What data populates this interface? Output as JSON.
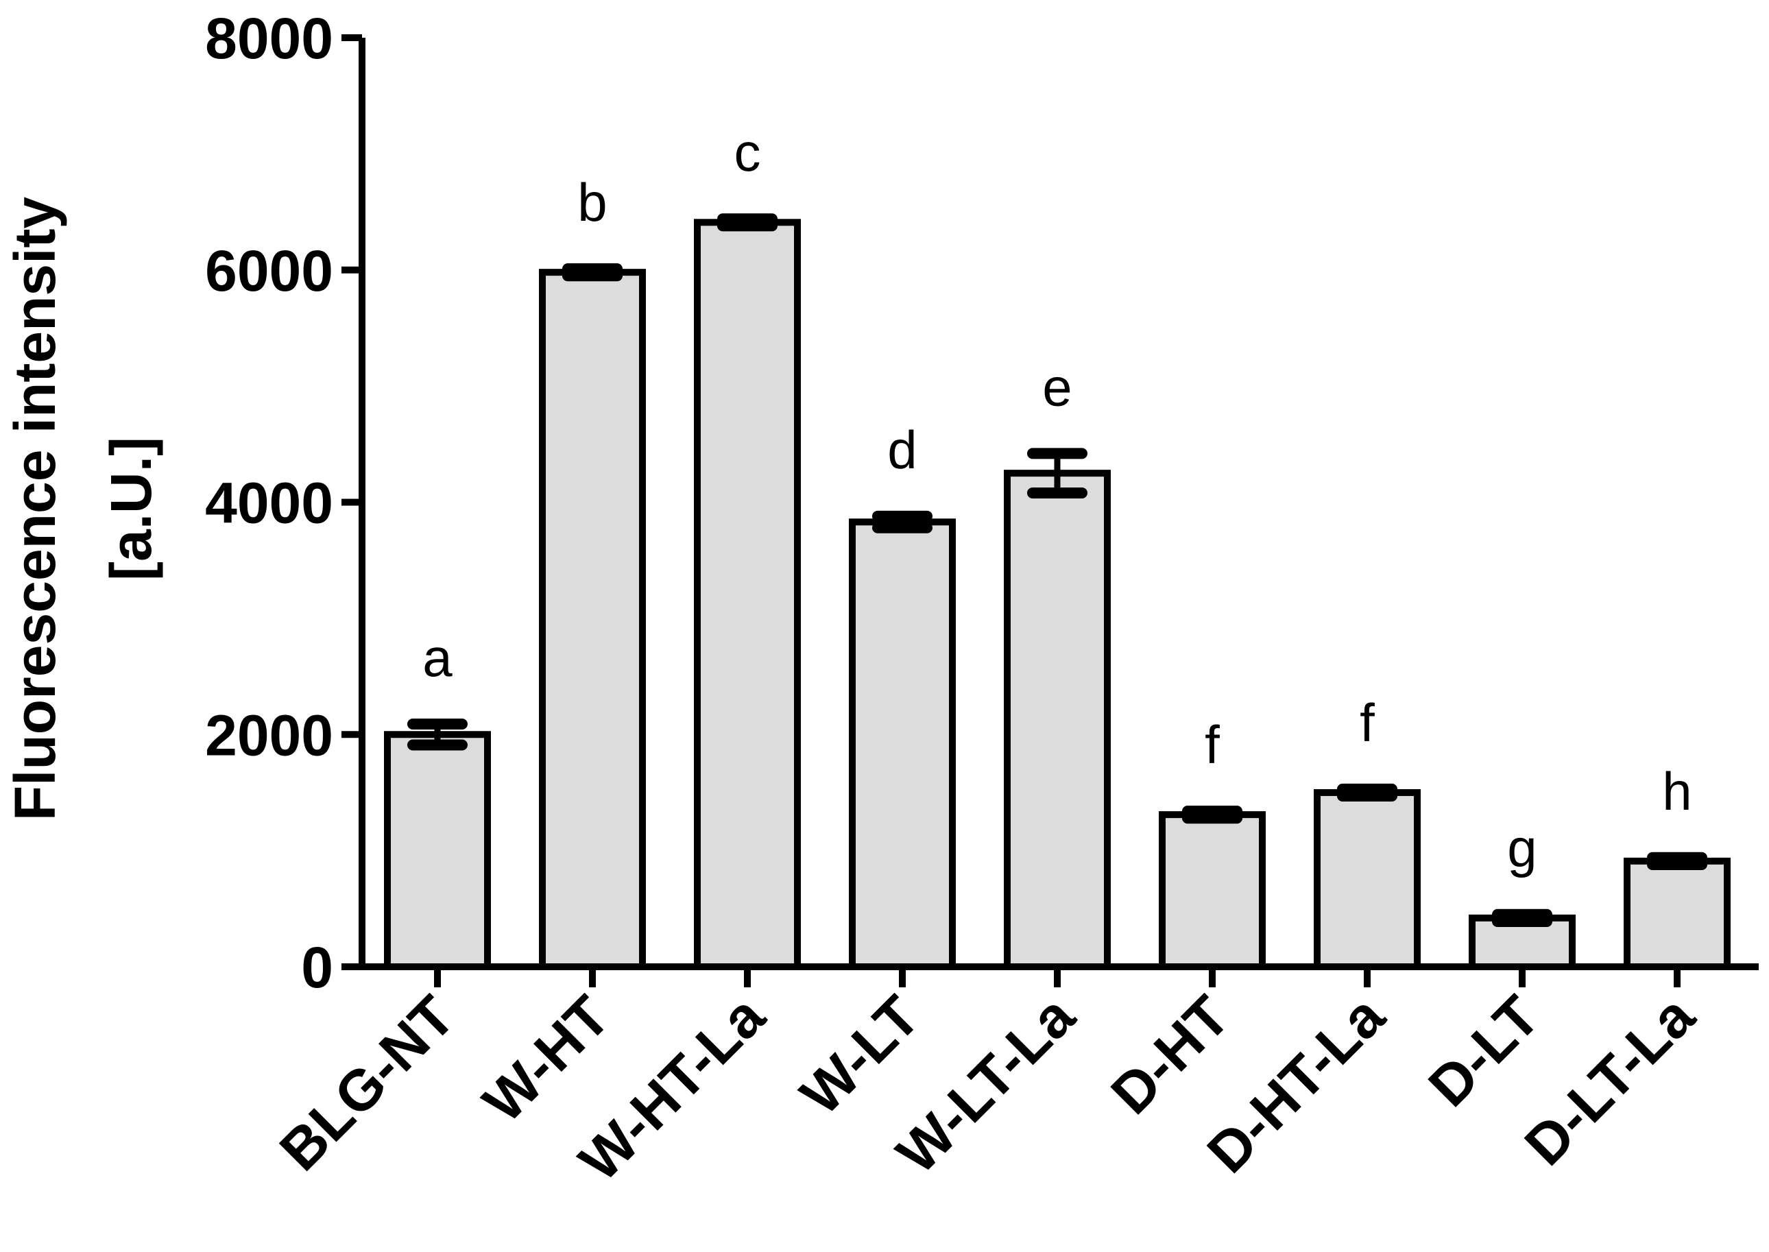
{
  "chart_data": {
    "type": "bar",
    "title": "",
    "xlabel": "",
    "ylabel": [
      "Fluorescence intensity",
      "[a.U.]"
    ],
    "ylim": [
      0,
      8000
    ],
    "yticks": [
      0,
      2000,
      4000,
      6000,
      8000
    ],
    "ytick_labels": [
      "0",
      "2000",
      "4000",
      "6000",
      "8000"
    ],
    "categories": [
      "BLG-NT",
      "W-HT",
      "W-HT-La",
      "W-LT",
      "W-LT-La",
      "D-HT",
      "D-HT-La",
      "D-LT",
      "D-LT-La"
    ],
    "values": [
      2000,
      5980,
      6410,
      3830,
      4250,
      1310,
      1500,
      420,
      910
    ],
    "errors": [
      90,
      30,
      30,
      50,
      170,
      30,
      30,
      30,
      30
    ],
    "significance_letters": [
      "a",
      "b",
      "c",
      "d",
      "e",
      "f",
      "f",
      "g",
      "h"
    ],
    "bar_color": "#dcdcdc",
    "edge_color": "#000000"
  }
}
